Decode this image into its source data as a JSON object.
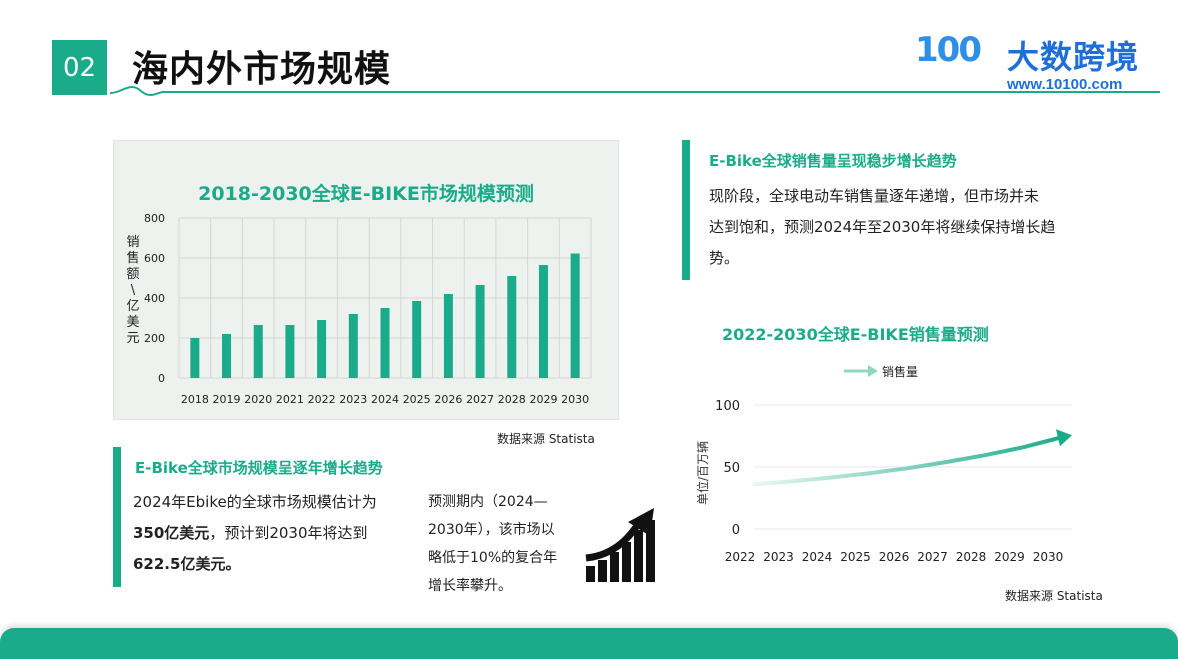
{
  "header": {
    "badge": "02",
    "title": "海内外市场规模",
    "logo_mark": "100",
    "logo_name": "大数跨境",
    "logo_url": "www.10100.com"
  },
  "left_section": {
    "heading": "E-Bike全球市场规模呈逐年增长趋势",
    "para_line1": "2024年Ebike的全球市场规模估计为",
    "para_bold1": "350亿美元",
    "para_line2_rest": "，预计到2030年将达到",
    "para_bold2": "622.5亿美元。",
    "forecast_lines": [
      "预测期内（2024—",
      "2030年），该市场以",
      "略低于10%的复合年",
      "增长率攀升。"
    ],
    "icon": "growth-chart-arrow-icon"
  },
  "right_section": {
    "heading": "E-Bike全球销售量呈现稳步增长趋势",
    "para_lines": [
      "现阶段，全球电动车销售量逐年递增，但市场并未",
      "达到饱和，预测2024年至2030年将继续保持增长趋",
      "势。"
    ]
  },
  "colors": {
    "accent": "#1aab8b",
    "logo_blue": "#1f6fd8"
  },
  "chart_data": [
    {
      "type": "bar",
      "title": "2018-2030全球E-BIKE市场规模预测",
      "ylabel": "销售额\\亿美元",
      "ylabel_chars": [
        "销",
        "售",
        "额",
        "\\",
        "亿",
        "美",
        "元"
      ],
      "categories": [
        "2018",
        "2019",
        "2020",
        "2021",
        "2022",
        "2023",
        "2024",
        "2025",
        "2026",
        "2027",
        "2028",
        "2029",
        "2030"
      ],
      "values": [
        200,
        220,
        265,
        265,
        290,
        320,
        350,
        385,
        420,
        465,
        510,
        565,
        622.5
      ],
      "yticks": [
        0,
        200,
        400,
        600,
        800
      ],
      "ylim": [
        0,
        800
      ],
      "grid": true,
      "color": "#1aab8b",
      "source": "数据来源  Statista"
    },
    {
      "type": "line",
      "title": "2022-2030全球E-BIKE销售量预测",
      "ylabel": "单位/百万辆",
      "series": [
        {
          "name": "销售量",
          "x": [
            "2022",
            "2023",
            "2024",
            "2025",
            "2026",
            "2027",
            "2028",
            "2029",
            "2030"
          ],
          "values": [
            36,
            38.5,
            41.5,
            45,
            49,
            54,
            59.5,
            66,
            74
          ]
        }
      ],
      "yticks": [
        0,
        50,
        100
      ],
      "ylim": [
        0,
        100
      ],
      "grid": true,
      "legend": "top",
      "color": "#1aab8b",
      "source": "数据来源  Statista"
    }
  ]
}
